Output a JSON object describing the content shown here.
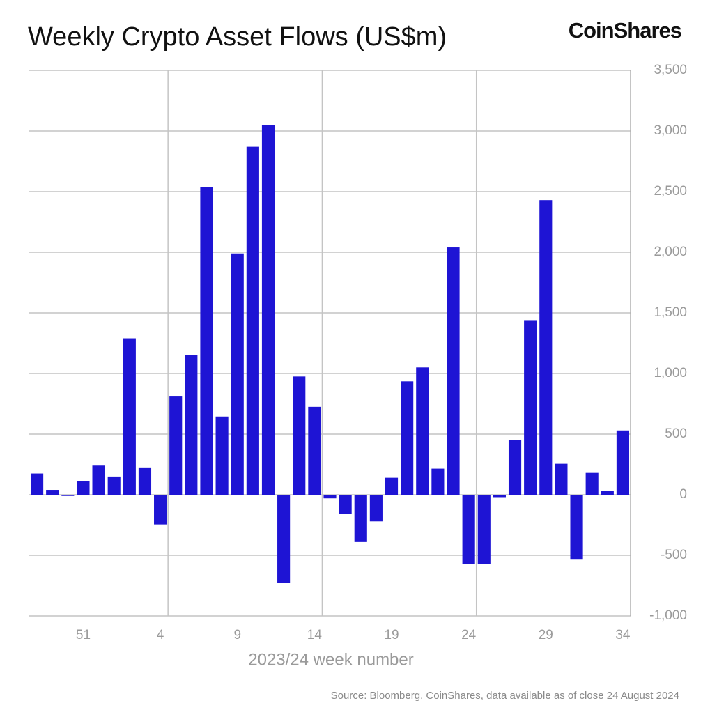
{
  "brand": "CoinShares",
  "source": "Source: Bloomberg, CoinShares, data available as of close 24 August 2024",
  "chart_data": {
    "type": "bar",
    "title": "Weekly Crypto Asset Flows (US$m)",
    "x_label": "2023/24 week number",
    "categories": [
      null,
      null,
      null,
      "51",
      null,
      null,
      null,
      null,
      "4",
      null,
      null,
      null,
      null,
      "9",
      null,
      null,
      null,
      null,
      "14",
      null,
      null,
      null,
      null,
      "19",
      null,
      null,
      null,
      null,
      "24",
      null,
      null,
      null,
      null,
      "29",
      null,
      null,
      null,
      null,
      "34"
    ],
    "values": [
      175,
      40,
      -10,
      110,
      240,
      150,
      1290,
      225,
      -245,
      810,
      1155,
      2535,
      645,
      1990,
      2870,
      3050,
      -725,
      975,
      725,
      -30,
      -160,
      -390,
      -220,
      140,
      935,
      1050,
      215,
      2040,
      -570,
      -570,
      -20,
      450,
      1440,
      2430,
      255,
      -530,
      180,
      30,
      530
    ],
    "color": "#1e14d4",
    "ylim": [
      -1000,
      3500
    ],
    "yticks": [
      {
        "value": -1000,
        "label": "-1,000"
      },
      -500,
      0,
      500,
      {
        "value": 1000,
        "label": "1,000"
      },
      {
        "value": 1500,
        "label": "1,500"
      },
      {
        "value": 2000,
        "label": "2,000"
      },
      {
        "value": 2500,
        "label": "2,500"
      },
      {
        "value": 3000,
        "label": "3,000"
      },
      {
        "value": 3500,
        "label": "3,500"
      }
    ],
    "grid": true
  }
}
